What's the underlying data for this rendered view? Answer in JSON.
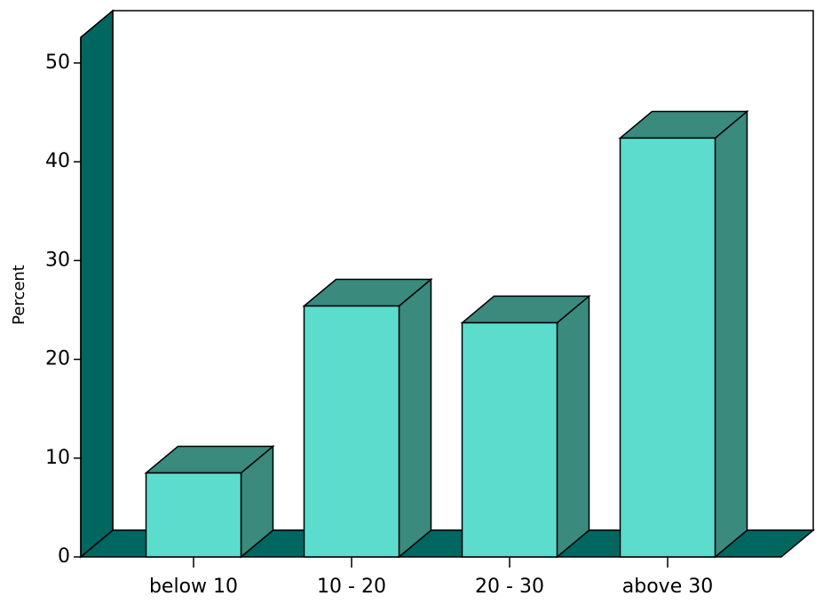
{
  "chart_data": {
    "type": "bar3d",
    "y_label": "Percent",
    "categories": [
      "below 10",
      "10 - 20",
      "20 - 30",
      "above 30"
    ],
    "values": [
      8.5,
      25.4,
      23.7,
      42.4
    ],
    "color": "#5cdccc",
    "ylim": [
      0,
      52.6
    ],
    "yticks": [
      0,
      10,
      20,
      30,
      40,
      50
    ]
  }
}
